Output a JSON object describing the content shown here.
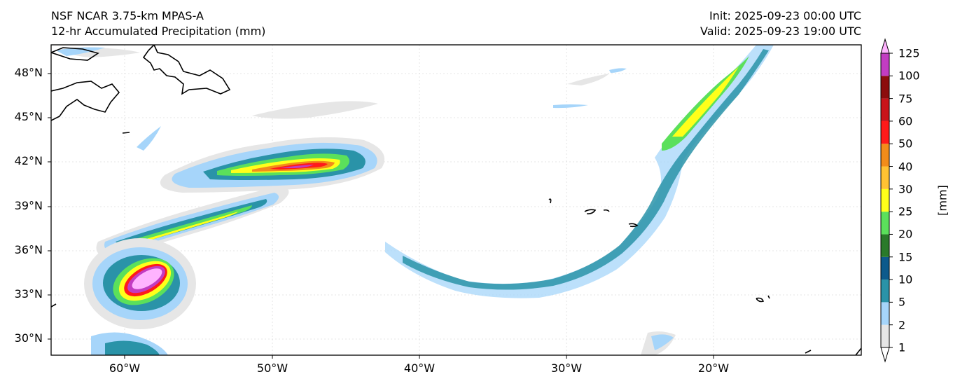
{
  "title_left": {
    "line1": "NSF NCAR 3.75-km MPAS-A",
    "line2": "12-hr Accumulated Precipitation (mm)"
  },
  "title_right": {
    "line1": "Init: 2025-09-23 00:00 UTC",
    "line2": "Valid: 2025-09-23 19:00 UTC"
  },
  "map": {
    "lat_labels": [
      "48°N",
      "45°N",
      "42°N",
      "39°N",
      "36°N",
      "33°N",
      "30°N"
    ],
    "lon_labels": [
      "60°W",
      "50°W",
      "40°W",
      "30°W",
      "20°W"
    ]
  },
  "colorbar": {
    "unit": "[mm]",
    "levels": [
      "1",
      "2",
      "5",
      "10",
      "15",
      "20",
      "25",
      "30",
      "40",
      "50",
      "60",
      "75",
      "100",
      "125"
    ],
    "colors": [
      "#e6e6e6",
      "#a6d5fa",
      "#2a93a8",
      "#0d5a8c",
      "#2a7a2a",
      "#5be05b",
      "#ffff1a",
      "#ffc233",
      "#f28c1a",
      "#ff1a1a",
      "#c8141a",
      "#8c0d0d",
      "#c23cc2",
      "#ffb3ff"
    ]
  }
}
